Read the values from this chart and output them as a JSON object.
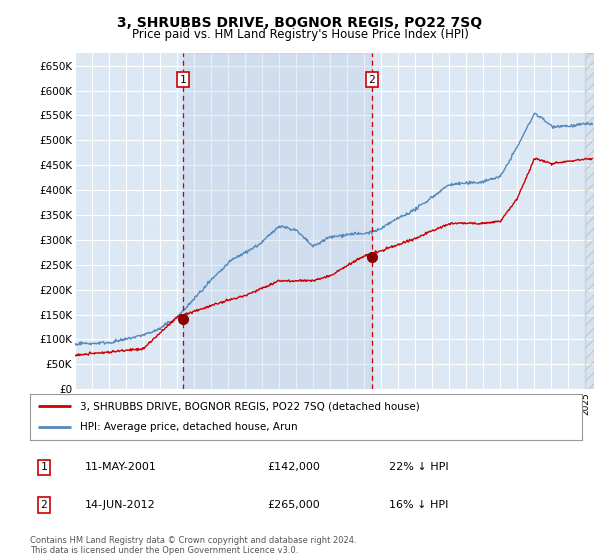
{
  "title": "3, SHRUBBS DRIVE, BOGNOR REGIS, PO22 7SQ",
  "subtitle": "Price paid vs. HM Land Registry's House Price Index (HPI)",
  "background_color": "#dce9f5",
  "plot_bg_color": "#dce9f5",
  "grid_color": "#c8d8e8",
  "hpi_color": "#5588bb",
  "price_color": "#cc0000",
  "ylim": [
    0,
    675000
  ],
  "yticks": [
    0,
    50000,
    100000,
    150000,
    200000,
    250000,
    300000,
    350000,
    400000,
    450000,
    500000,
    550000,
    600000,
    650000
  ],
  "ytick_labels": [
    "£0",
    "£50K",
    "£100K",
    "£150K",
    "£200K",
    "£250K",
    "£300K",
    "£350K",
    "£400K",
    "£450K",
    "£500K",
    "£550K",
    "£600K",
    "£650K"
  ],
  "sale1_date": 2001.36,
  "sale1_price": 142000,
  "sale1_label": "1",
  "sale1_text": "11-MAY-2001",
  "sale1_amount": "£142,000",
  "sale1_hpi": "22% ↓ HPI",
  "sale2_date": 2012.45,
  "sale2_price": 265000,
  "sale2_label": "2",
  "sale2_text": "14-JUN-2012",
  "sale2_amount": "£265,000",
  "sale2_hpi": "16% ↓ HPI",
  "legend_label1": "3, SHRUBBS DRIVE, BOGNOR REGIS, PO22 7SQ (detached house)",
  "legend_label2": "HPI: Average price, detached house, Arun",
  "footer": "Contains HM Land Registry data © Crown copyright and database right 2024.\nThis data is licensed under the Open Government Licence v3.0.",
  "xmin": 1995.0,
  "xmax": 2025.5,
  "hpi_anchors_years": [
    1995,
    1996,
    1997,
    1998,
    1999,
    2000,
    2001,
    2002,
    2003,
    2004,
    2005,
    2006,
    2007,
    2008,
    2009,
    2010,
    2011,
    2012,
    2013,
    2014,
    2015,
    2016,
    2017,
    2018,
    2019,
    2020,
    2021,
    2022,
    2023,
    2024,
    2025
  ],
  "hpi_anchors_vals": [
    90000,
    93000,
    97000,
    103000,
    112000,
    125000,
    148000,
    185000,
    220000,
    255000,
    275000,
    295000,
    330000,
    320000,
    285000,
    305000,
    310000,
    310000,
    320000,
    340000,
    360000,
    385000,
    410000,
    415000,
    420000,
    430000,
    490000,
    555000,
    530000,
    530000,
    535000
  ],
  "price_anchors_years": [
    1995,
    1997,
    1999,
    2001,
    2003,
    2005,
    2007,
    2009,
    2010,
    2012,
    2013,
    2015,
    2017,
    2019,
    2020,
    2021,
    2022,
    2023,
    2024,
    2025
  ],
  "price_anchors_vals": [
    68000,
    72000,
    78000,
    142000,
    165000,
    185000,
    215000,
    215000,
    225000,
    265000,
    275000,
    300000,
    330000,
    330000,
    335000,
    380000,
    460000,
    450000,
    455000,
    460000
  ]
}
